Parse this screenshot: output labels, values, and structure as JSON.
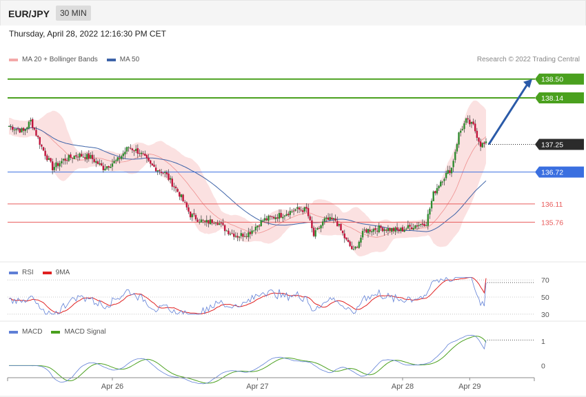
{
  "header": {
    "symbol": "EUR/JPY",
    "timeframe": "30 MIN"
  },
  "timestamp": "Thursday, April 28, 2022 12:16:30 PM CET",
  "credit": "Research © 2022 Trading Central",
  "colors": {
    "bollinger": "#f4a8a8",
    "ma50": "#3d63a8",
    "candle_up": "#2e8b2e",
    "candle_down": "#c0143c",
    "resistance": "#4aa01e",
    "pivot": "#3a6fe0",
    "support": "#e85a5a",
    "rsi": "#5f7fd6",
    "rsi_ma": "#e02020",
    "macd": "#5f7fd6",
    "macd_signal": "#4aa01e",
    "forecast_arrow": "#2a5aa8"
  },
  "chart_data": [
    {
      "type": "candlestick",
      "name": "price",
      "legend": [
        {
          "label": "MA 20 + Bollinger Bands",
          "color": "#f4a8a8"
        },
        {
          "label": "MA 50",
          "color": "#3d63a8"
        }
      ],
      "x_ticks": [
        "Apr 26",
        "Apr 27",
        "Apr 28",
        "Apr 29"
      ],
      "ylim": [
        135.0,
        138.8
      ],
      "levels": [
        {
          "label": "138.50",
          "value": 138.5,
          "kind": "resistance"
        },
        {
          "label": "138.14",
          "value": 138.14,
          "kind": "resistance"
        },
        {
          "label": "137.25",
          "value": 137.25,
          "kind": "last"
        },
        {
          "label": "136.72",
          "value": 136.72,
          "kind": "pivot"
        },
        {
          "label": "136.11",
          "value": 136.11,
          "kind": "support"
        },
        {
          "label": "135.76",
          "value": 135.76,
          "kind": "support"
        }
      ],
      "close_series_keypoints": [
        [
          0,
          137.6
        ],
        [
          8,
          137.5
        ],
        [
          12,
          137.7
        ],
        [
          18,
          137.2
        ],
        [
          24,
          136.8
        ],
        [
          30,
          136.95
        ],
        [
          38,
          137.05
        ],
        [
          45,
          137.0
        ],
        [
          52,
          136.8
        ],
        [
          60,
          136.95
        ],
        [
          66,
          137.2
        ],
        [
          72,
          137.1
        ],
        [
          78,
          136.85
        ],
        [
          86,
          136.7
        ],
        [
          94,
          136.3
        ],
        [
          100,
          135.9
        ],
        [
          108,
          135.75
        ],
        [
          114,
          135.8
        ],
        [
          120,
          135.6
        ],
        [
          126,
          135.5
        ],
        [
          132,
          135.55
        ],
        [
          140,
          135.8
        ],
        [
          150,
          135.9
        ],
        [
          158,
          136.0
        ],
        [
          164,
          136.0
        ],
        [
          168,
          135.5
        ],
        [
          174,
          135.8
        ],
        [
          180,
          135.8
        ],
        [
          186,
          135.4
        ],
        [
          190,
          135.2
        ],
        [
          196,
          135.6
        ],
        [
          205,
          135.65
        ],
        [
          215,
          135.6
        ],
        [
          224,
          135.7
        ],
        [
          230,
          135.75
        ],
        [
          234,
          136.3
        ],
        [
          238,
          136.55
        ],
        [
          244,
          136.8
        ],
        [
          248,
          137.45
        ],
        [
          252,
          137.7
        ],
        [
          256,
          137.6
        ],
        [
          260,
          137.25
        ]
      ]
    },
    {
      "type": "line",
      "name": "rsi",
      "legend": [
        {
          "label": "RSI",
          "color": "#5f7fd6"
        },
        {
          "label": "9MA",
          "color": "#e02020"
        }
      ],
      "ylim": [
        25,
        75
      ],
      "y_ticks": [
        {
          "label": "70",
          "value": 70
        },
        {
          "label": "50",
          "value": 50
        },
        {
          "label": "30",
          "value": 30
        }
      ],
      "rsi_last": 67,
      "rsi_ma_last": 72
    },
    {
      "type": "line",
      "name": "macd",
      "legend": [
        {
          "label": "MACD",
          "color": "#5f7fd6"
        },
        {
          "label": "MACD Signal",
          "color": "#4aa01e"
        }
      ],
      "ylim": [
        -0.5,
        1.2
      ],
      "y_ticks": [
        {
          "label": "1",
          "value": 1
        },
        {
          "label": "0",
          "value": 0
        }
      ],
      "macd_last": 1.05,
      "signal_last": 0.95
    }
  ]
}
